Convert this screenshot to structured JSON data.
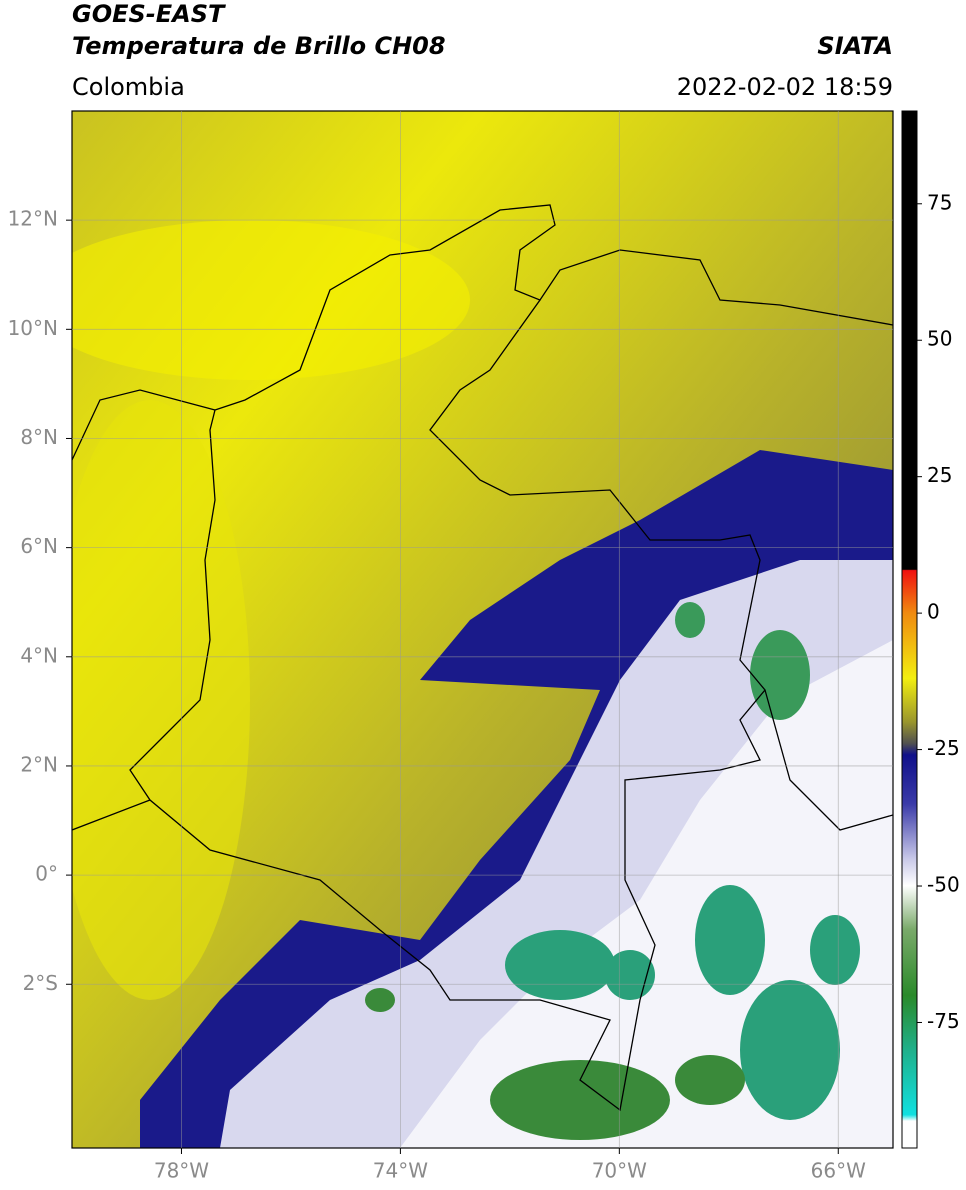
{
  "header": {
    "title": "GOES-EAST",
    "subtitle": "Temperatura de Brillo CH08",
    "region": "Colombia",
    "source": "SIATA",
    "timestamp": "2022-02-02 18:59"
  },
  "chart_data": {
    "type": "map",
    "xlim": [
      -80,
      -65
    ],
    "ylim": [
      -5,
      14
    ],
    "xticks": [
      {
        "value": -78,
        "label": "78°W"
      },
      {
        "value": -74,
        "label": "74°W"
      },
      {
        "value": -70,
        "label": "70°W"
      },
      {
        "value": -66,
        "label": "66°W"
      }
    ],
    "yticks": [
      {
        "value": 12,
        "label": "12°N"
      },
      {
        "value": 10,
        "label": "10°N"
      },
      {
        "value": 8,
        "label": "8°N"
      },
      {
        "value": 6,
        "label": "6°N"
      },
      {
        "value": 4,
        "label": "4°N"
      },
      {
        "value": 2,
        "label": "2°N"
      },
      {
        "value": 0,
        "label": "0°"
      },
      {
        "value": -2,
        "label": "2°S"
      }
    ],
    "grid": true,
    "colorbar": {
      "lim": [
        -98,
        92
      ],
      "ticks": [
        75,
        50,
        25,
        0,
        -25,
        -50,
        -75
      ]
    }
  }
}
